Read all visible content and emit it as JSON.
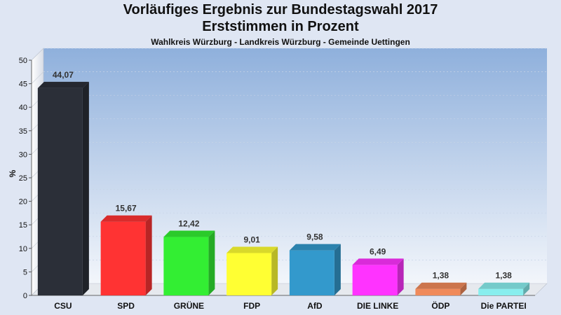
{
  "chart_data": {
    "type": "bar",
    "title": "Vorläufiges Ergebnis zur Bundestagswahl 2017",
    "subtitle": "Erststimmen in Prozent",
    "caption": "Wahlkreis Würzburg - Landkreis Würzburg - Gemeinde Uettingen",
    "ylabel": "%",
    "xlabel": "",
    "ylim": [
      0,
      50
    ],
    "yticks": [
      0,
      5,
      10,
      15,
      20,
      25,
      30,
      35,
      40,
      45,
      50
    ],
    "grid": true,
    "categories": [
      "CSU",
      "SPD",
      "GRÜNE",
      "FDP",
      "AfD",
      "DIE LINKE",
      "ÖDP",
      "Die PARTEI"
    ],
    "values": [
      44.07,
      15.67,
      12.42,
      9.01,
      9.58,
      6.49,
      1.38,
      1.38
    ],
    "value_labels": [
      "44,07",
      "15,67",
      "12,42",
      "9,01",
      "9,58",
      "6,49",
      "1,38",
      "1,38"
    ],
    "colors": [
      "#2b2f38",
      "#ff3333",
      "#33ee33",
      "#ffff33",
      "#3399cc",
      "#ff33ff",
      "#f08a5a",
      "#88eeee"
    ]
  }
}
